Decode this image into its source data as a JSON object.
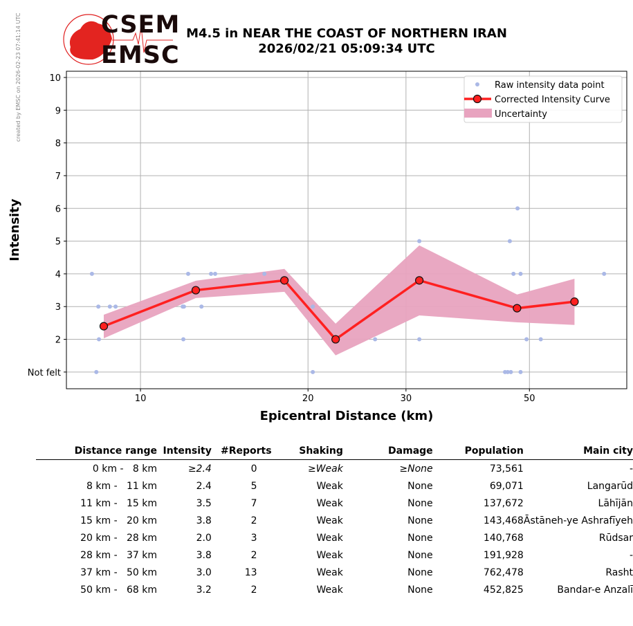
{
  "watermark": "created by EMSC on 2026-02-23 07:41:14 UTC",
  "logo": {
    "line1": "CSEM",
    "line2": "EMSC"
  },
  "title": {
    "line1": "M4.5 in NEAR THE COAST OF NORTHERN IRAN",
    "line2": "2026/02/21 05:09:34 UTC"
  },
  "colors": {
    "raw": "#aab8e6",
    "curve": "#ff2020",
    "uncertainty": "#e8a3bf",
    "grid": "#b0b0b0"
  },
  "chart_data": {
    "type": "line",
    "xlabel": "Epicentral Distance (km)",
    "ylabel": "Intensity",
    "xscale": "log",
    "xlim": [
      7.36,
      74.8
    ],
    "ylim": [
      0.49,
      10.19
    ],
    "xticks": [
      {
        "value": 10,
        "label": "10"
      },
      {
        "value": 20,
        "label": "20"
      },
      {
        "value": 30,
        "label": "30"
      },
      {
        "value": 50,
        "label": "50"
      }
    ],
    "yticks": [
      {
        "value": 1,
        "label": "Not felt"
      },
      {
        "value": 2,
        "label": "2"
      },
      {
        "value": 3,
        "label": "3"
      },
      {
        "value": 4,
        "label": "4"
      },
      {
        "value": 5,
        "label": "5"
      },
      {
        "value": 6,
        "label": "6"
      },
      {
        "value": 7,
        "label": "7"
      },
      {
        "value": 8,
        "label": "8"
      },
      {
        "value": 9,
        "label": "9"
      },
      {
        "value": 10,
        "label": "10"
      }
    ],
    "grid": true,
    "legend_position": "top-right",
    "legend": [
      "Raw intensity data point",
      "Corrected Intensity Curve",
      "Uncertainty"
    ],
    "raw_points": [
      [
        8.18,
        4
      ],
      [
        8.4,
        3
      ],
      [
        8.42,
        2
      ],
      [
        8.33,
        1
      ],
      [
        8.81,
        3
      ],
      [
        9.02,
        3
      ],
      [
        12.18,
        4
      ],
      [
        11.91,
        3
      ],
      [
        11.97,
        3
      ],
      [
        11.94,
        2
      ],
      [
        12.87,
        3
      ],
      [
        13.39,
        4
      ],
      [
        13.62,
        4
      ],
      [
        16.7,
        4
      ],
      [
        20.4,
        3
      ],
      [
        20.4,
        1
      ],
      [
        26.4,
        2
      ],
      [
        31.7,
        5
      ],
      [
        31.7,
        2
      ],
      [
        46.1,
        5
      ],
      [
        47.6,
        6
      ],
      [
        46.8,
        4
      ],
      [
        48.2,
        4
      ],
      [
        45.2,
        1
      ],
      [
        45.7,
        1
      ],
      [
        46.3,
        1
      ],
      [
        48.2,
        1
      ],
      [
        49.4,
        2
      ],
      [
        52.4,
        2
      ],
      [
        68.1,
        4
      ]
    ],
    "curve": {
      "x": [
        8.59,
        12.57,
        18.14,
        22.42,
        31.7,
        47.5,
        60.25
      ],
      "y": [
        2.4,
        3.5,
        3.8,
        2.0,
        3.8,
        2.95,
        3.15
      ]
    },
    "uncertainty": {
      "upper": [
        2.75,
        3.79,
        4.15,
        2.48,
        4.87,
        3.37,
        3.85
      ],
      "lower": [
        2.03,
        3.26,
        3.45,
        1.51,
        2.73,
        2.52,
        2.44
      ]
    }
  },
  "table": {
    "headers": [
      "Distance range",
      "Intensity",
      "#Reports",
      "Shaking",
      "Damage",
      "Population",
      "Main city"
    ],
    "rows": [
      [
        "0 km -   8 km",
        "≥2.4",
        "0",
        "≥Weak",
        "≥None",
        "73,561",
        "-"
      ],
      [
        "8 km -   11 km",
        "2.4",
        "5",
        "Weak",
        "None",
        "69,071",
        "Langarūd"
      ],
      [
        "11 km -   15 km",
        "3.5",
        "7",
        "Weak",
        "None",
        "137,672",
        "Lāhījān"
      ],
      [
        "15 km -   20 km",
        "3.8",
        "2",
        "Weak",
        "None",
        "143,468",
        "Āstāneh-ye Ashrafīyeh"
      ],
      [
        "20 km -   28 km",
        "2.0",
        "3",
        "Weak",
        "None",
        "140,768",
        "Rūdsar"
      ],
      [
        "28 km -   37 km",
        "3.8",
        "2",
        "Weak",
        "None",
        "191,928",
        "-"
      ],
      [
        "37 km -   50 km",
        "3.0",
        "13",
        "Weak",
        "None",
        "762,478",
        "Rasht"
      ],
      [
        "50 km -   68 km",
        "3.2",
        "2",
        "Weak",
        "None",
        "452,825",
        "Bandar-e Anzalī"
      ]
    ]
  }
}
